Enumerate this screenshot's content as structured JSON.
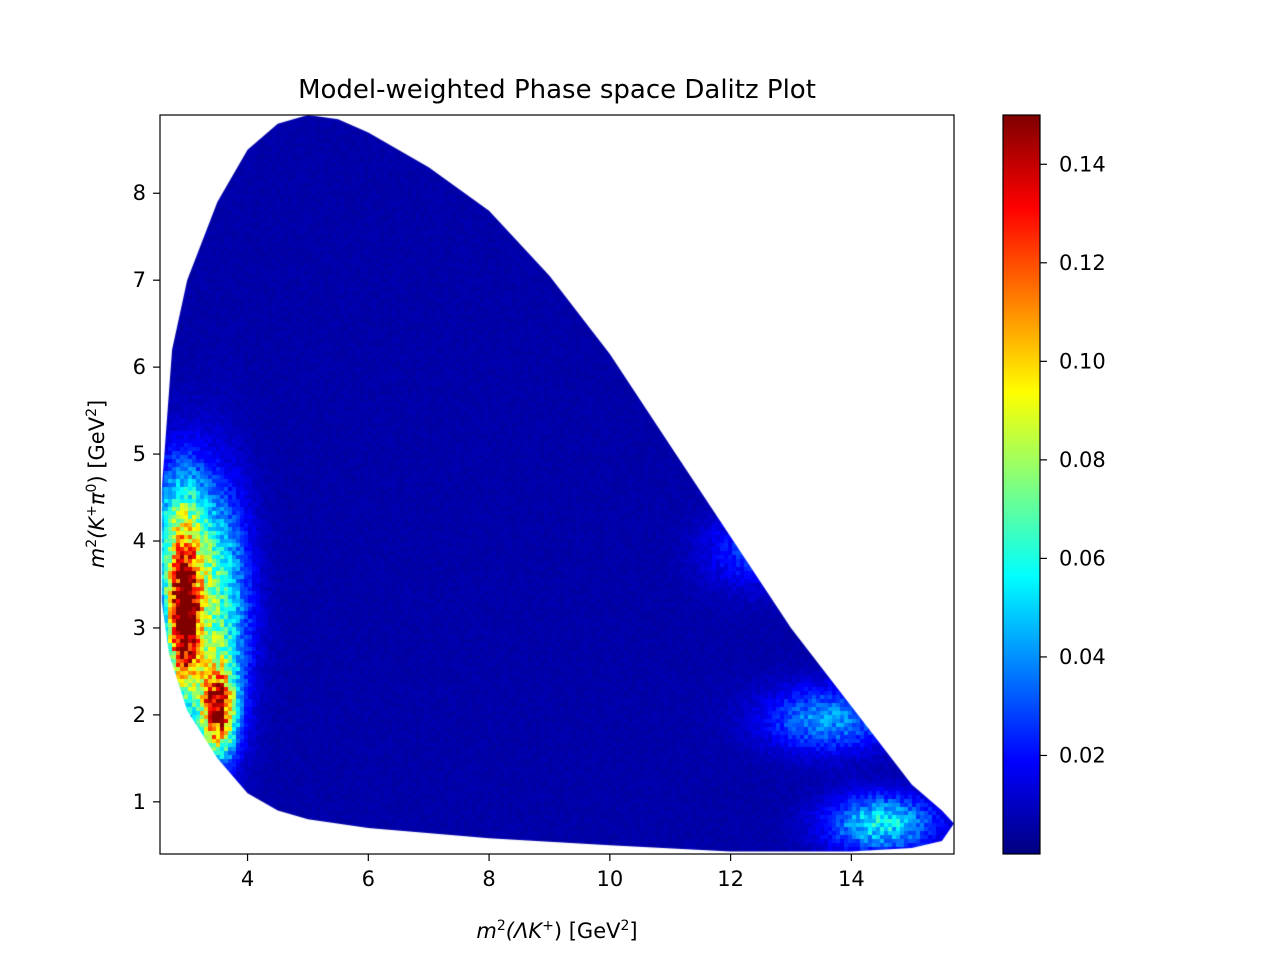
{
  "chart_data": {
    "type": "heatmap",
    "title": "Model-weighted Phase space Dalitz Plot",
    "xlabel": {
      "prefix": "m",
      "sup1": "2",
      "mid": "(ΛK",
      "sup2": "+",
      "suffix": ") [GeV",
      "sup3": "2",
      "end": "]"
    },
    "ylabel": {
      "prefix": "m",
      "sup1": "2",
      "mid": "(K",
      "sup2": "+",
      "mid2": "π",
      "sup3": "0",
      "suffix": ") [GeV",
      "sup4": "2",
      "end": "]"
    },
    "xlim": [
      2.55,
      15.7
    ],
    "ylim": [
      0.4,
      8.9
    ],
    "xticks": [
      "4",
      "6",
      "8",
      "10",
      "12",
      "14"
    ],
    "xtick_values": [
      4,
      6,
      8,
      10,
      12,
      14
    ],
    "yticks": [
      "1",
      "2",
      "3",
      "4",
      "5",
      "6",
      "7",
      "8"
    ],
    "ytick_values": [
      1,
      2,
      3,
      4,
      5,
      6,
      7,
      8
    ],
    "colorbar": {
      "min": 0.0,
      "max": 0.15,
      "ticks": [
        "0.02",
        "0.04",
        "0.06",
        "0.08",
        "0.10",
        "0.12",
        "0.14"
      ],
      "tick_values": [
        0.02,
        0.04,
        0.06,
        0.08,
        0.1,
        0.12,
        0.14
      ],
      "colormap": "jet"
    },
    "grid": false,
    "boundary": {
      "upper": [
        [
          2.58,
          4.6
        ],
        [
          2.75,
          6.2
        ],
        [
          3.0,
          7.0
        ],
        [
          3.5,
          7.9
        ],
        [
          4.0,
          8.5
        ],
        [
          4.5,
          8.8
        ],
        [
          5.0,
          8.9
        ],
        [
          5.5,
          8.85
        ],
        [
          6.0,
          8.7
        ],
        [
          7.0,
          8.3
        ],
        [
          8.0,
          7.8
        ],
        [
          9.0,
          7.05
        ],
        [
          10.0,
          6.15
        ],
        [
          11.0,
          5.1
        ],
        [
          12.0,
          4.05
        ],
        [
          13.0,
          3.0
        ],
        [
          14.0,
          2.1
        ],
        [
          15.0,
          1.2
        ],
        [
          15.5,
          0.9
        ],
        [
          15.7,
          0.75
        ]
      ],
      "lower": [
        [
          15.7,
          0.75
        ],
        [
          15.5,
          0.55
        ],
        [
          15.0,
          0.47
        ],
        [
          14.0,
          0.43
        ],
        [
          12.0,
          0.43
        ],
        [
          10.0,
          0.5
        ],
        [
          8.0,
          0.58
        ],
        [
          6.0,
          0.7
        ],
        [
          5.0,
          0.8
        ],
        [
          4.5,
          0.9
        ],
        [
          4.0,
          1.1
        ],
        [
          3.5,
          1.5
        ],
        [
          3.0,
          2.05
        ],
        [
          2.7,
          2.7
        ],
        [
          2.58,
          3.3
        ]
      ]
    },
    "hotspots": [
      {
        "x": 2.95,
        "y": 3.0,
        "sx": 0.18,
        "sy": 0.55,
        "w": 0.14
      },
      {
        "x": 3.5,
        "y": 2.05,
        "sx": 0.2,
        "sy": 0.35,
        "w": 0.12
      },
      {
        "x": 3.5,
        "y": 3.2,
        "sx": 0.35,
        "sy": 0.9,
        "w": 0.06
      },
      {
        "x": 2.9,
        "y": 4.0,
        "sx": 0.3,
        "sy": 0.6,
        "w": 0.07
      },
      {
        "x": 14.5,
        "y": 0.75,
        "sx": 0.6,
        "sy": 0.22,
        "w": 0.05
      },
      {
        "x": 13.6,
        "y": 1.95,
        "sx": 0.7,
        "sy": 0.25,
        "w": 0.035
      },
      {
        "x": 12.3,
        "y": 3.9,
        "sx": 0.5,
        "sy": 0.3,
        "w": 0.02
      }
    ]
  }
}
